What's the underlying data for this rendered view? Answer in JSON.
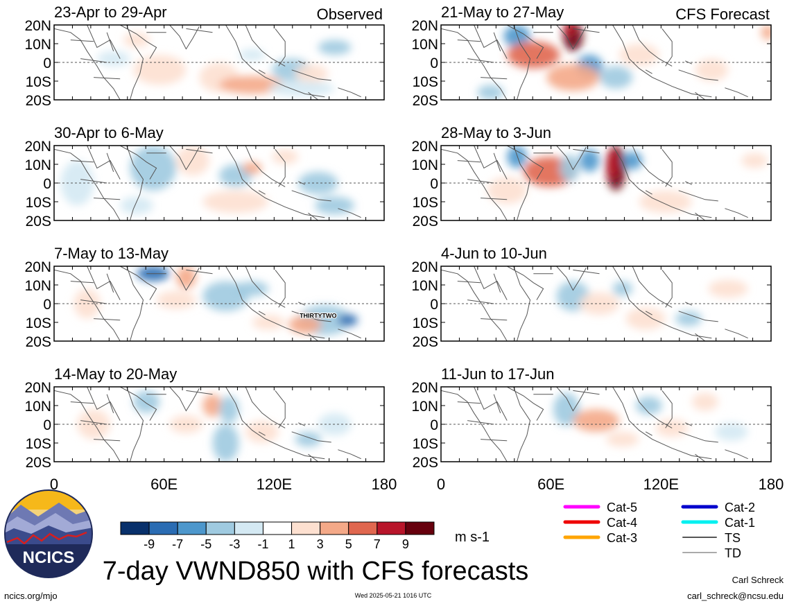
{
  "panels": [
    {
      "date_range": "23-Apr to 29-Apr",
      "label": "Observed",
      "storm_label": ""
    },
    {
      "date_range": "30-Apr to 6-May",
      "label": "",
      "storm_label": ""
    },
    {
      "date_range": "7-May to 13-May",
      "label": "",
      "storm_label": "THIRTYTWO"
    },
    {
      "date_range": "14-May to 20-May",
      "label": "",
      "storm_label": ""
    },
    {
      "date_range": "21-May to 27-May",
      "label": "CFS Forecast",
      "storm_label": ""
    },
    {
      "date_range": "28-May to 3-Jun",
      "label": "",
      "storm_label": ""
    },
    {
      "date_range": "4-Jun to 10-Jun",
      "label": "",
      "storm_label": ""
    },
    {
      "date_range": "11-Jun to 17-Jun",
      "label": "",
      "storm_label": ""
    }
  ],
  "lat_labels": [
    "20N",
    "10N",
    "0",
    "10S",
    "20S"
  ],
  "lon_labels": [
    "0",
    "60E",
    "120E",
    "180"
  ],
  "colorbar": {
    "colors": [
      "#08306b",
      "#2a6cb3",
      "#4d97cc",
      "#9fcae0",
      "#d4e9f3",
      "#ffffff",
      "#fde0d0",
      "#f4a988",
      "#e0674f",
      "#b8152a",
      "#67000d"
    ],
    "tick_labels": [
      "-9",
      "-7",
      "-5",
      "-3",
      "-1",
      "1",
      "3",
      "5",
      "7",
      "9"
    ],
    "units": "m s-1"
  },
  "legend": [
    {
      "label": "Cat-5",
      "color": "#ff00ff"
    },
    {
      "label": "Cat-4",
      "color": "#ee0000"
    },
    {
      "label": "Cat-3",
      "color": "#ffa500"
    },
    {
      "label": "Cat-2",
      "color": "#0000cc"
    },
    {
      "label": "Cat-1",
      "color": "#00f0f0"
    },
    {
      "label": "TS",
      "color": "#555555"
    },
    {
      "label": "TD",
      "color": "#aaaaaa"
    }
  ],
  "logo_text": "NCICS",
  "main_title": "7-day VWND850 with CFS forecasts",
  "footer": {
    "left": "ncics.org/mjo",
    "center": "Wed 2025-05-21 1016 UTC",
    "author": "Carl Schreck",
    "email": "carl_schreck@ncsu.edu"
  }
}
